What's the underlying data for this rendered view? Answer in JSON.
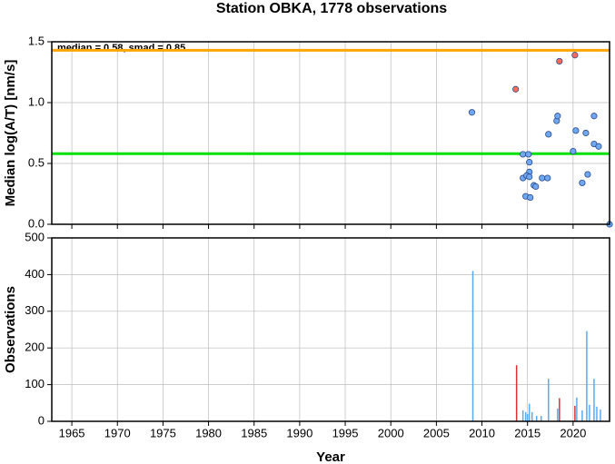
{
  "chart_data": [
    {
      "type": "scatter",
      "title": "Station OBKA, 1778 observations",
      "ylabel": "Median log(A/T) [nm/s]",
      "annotation": "median = 0.58, smad = 0.85",
      "xlim": [
        1962.8,
        2024
      ],
      "ylim": [
        0,
        1.5
      ],
      "xticks": [
        1965,
        1970,
        1975,
        1980,
        1985,
        1990,
        1995,
        2000,
        2005,
        2010,
        2015,
        2020
      ],
      "yticks": [
        {
          "value": 0,
          "label": "0.0"
        },
        0.5,
        {
          "value": 1,
          "label": "1.0"
        },
        1.5
      ],
      "grid": true,
      "hlines": [
        {
          "value": 0.58,
          "color": "#00e000"
        },
        {
          "value": 1.43,
          "color": "#ffa500"
        }
      ],
      "series": [
        {
          "color": "#6fa8f0",
          "x": [
            2008.9,
            2014.5,
            2015.1,
            2015.2,
            2015.2,
            2014.5,
            2014.9,
            2015.2,
            2014.8,
            2015.3,
            2015.7,
            2015.9,
            2016.6,
            2017.2,
            2017.3,
            2018.2,
            2018.3,
            2020.0,
            2020.3,
            2021.0,
            2021.4,
            2021.6,
            2022.3,
            2022.3,
            2022.8,
            2024.0
          ],
          "values": [
            0.92,
            0.575,
            0.575,
            0.51,
            0.43,
            0.38,
            0.4,
            0.39,
            0.23,
            0.22,
            0.32,
            0.31,
            0.38,
            0.38,
            0.74,
            0.85,
            0.89,
            0.6,
            0.77,
            0.34,
            0.75,
            0.41,
            0.89,
            0.66,
            0.64,
            0.0
          ]
        },
        {
          "color": "#ff6a5a",
          "x": [
            2013.7,
            2018.5,
            2020.2
          ],
          "values": [
            1.11,
            1.34,
            1.39
          ]
        }
      ]
    },
    {
      "type": "bar",
      "xlabel": "Year",
      "ylabel": "Observations",
      "xlim": [
        1962.8,
        2024
      ],
      "ylim": [
        0,
        500
      ],
      "xticks": [
        1965,
        1970,
        1975,
        1980,
        1985,
        1990,
        1995,
        2000,
        2005,
        2010,
        2015,
        2020
      ],
      "yticks": [
        0,
        100,
        200,
        300,
        400,
        500
      ],
      "grid": true,
      "series": [
        {
          "color": "#5aaaf0",
          "x": [
            2009.0,
            2014.5,
            2014.8,
            2015.0,
            2015.2,
            2015.5,
            2016.0,
            2016.5,
            2017.3,
            2018.3,
            2020.4,
            2021.0,
            2021.5,
            2021.8,
            2022.3,
            2022.6,
            2023.0
          ],
          "values": [
            410,
            30,
            25,
            20,
            48,
            25,
            15,
            15,
            116,
            35,
            65,
            30,
            246,
            45,
            116,
            40,
            32
          ]
        },
        {
          "color": "#e03030",
          "x": [
            2013.8,
            2018.5,
            2020.2
          ],
          "values": [
            153,
            63,
            42
          ]
        }
      ]
    }
  ]
}
